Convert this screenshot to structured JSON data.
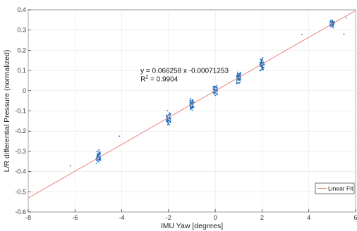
{
  "chart_data": {
    "type": "scatter",
    "xlabel": "IMU Yaw [degrees]",
    "ylabel": "L/R differential Pressure (normalized)",
    "xlim": [
      -8,
      6
    ],
    "ylim": [
      -0.6,
      0.4
    ],
    "xticks": [
      -8,
      -6,
      -4,
      -2,
      0,
      2,
      4,
      6
    ],
    "yticks": [
      -0.6,
      -0.5,
      -0.4,
      -0.3,
      -0.2,
      -0.1,
      0,
      0.1,
      0.2,
      0.3,
      0.4
    ],
    "xtick_labels": [
      "-8",
      "-6",
      "-4",
      "-2",
      "0",
      "2",
      "4",
      "6"
    ],
    "ytick_labels": [
      "-0.6",
      "-0.5",
      "-0.4",
      "-0.3",
      "-0.2",
      "-0.1",
      "0",
      "0.1",
      "0.2",
      "0.3",
      "0.4"
    ],
    "grid": true,
    "legend_position": "bottom-right",
    "series": [
      {
        "type": "scatter",
        "color": "#1f6fbf",
        "clusters": [
          {
            "x": -5,
            "y_center": -0.323,
            "y_spread": 0.045,
            "count": 55
          },
          {
            "x": -2,
            "y_center": -0.135,
            "y_spread": 0.045,
            "count": 60
          },
          {
            "x": -1,
            "y_center": -0.066,
            "y_spread": 0.04,
            "count": 55
          },
          {
            "x": 0,
            "y_center": 0.001,
            "y_spread": 0.035,
            "count": 50
          },
          {
            "x": 1,
            "y_center": 0.065,
            "y_spread": 0.04,
            "count": 55
          },
          {
            "x": 2,
            "y_center": 0.132,
            "y_spread": 0.04,
            "count": 55
          },
          {
            "x": 5,
            "y_center": 0.333,
            "y_spread": 0.03,
            "count": 45
          }
        ],
        "outliers": [
          {
            "x": -6.2,
            "y": -0.372
          },
          {
            "x": -4.1,
            "y": -0.225
          },
          {
            "x": 3.7,
            "y": 0.278
          },
          {
            "x": 5.5,
            "y": 0.28
          },
          {
            "x": 5.6,
            "y": 0.36
          }
        ]
      },
      {
        "name": "Linear Fit",
        "type": "line",
        "color": "#e8847a",
        "slope": 0.066258,
        "intercept": -0.00071253
      }
    ],
    "annotation": {
      "equation": "y = 0.066258 x  -0.00071253",
      "r_squared": "R  = 0.9904",
      "r_squared_prefix": "R",
      "r_squared_superscript": "2",
      "r_squared_value": " = 0.9904",
      "x": -3.2,
      "y": 0.088
    }
  }
}
